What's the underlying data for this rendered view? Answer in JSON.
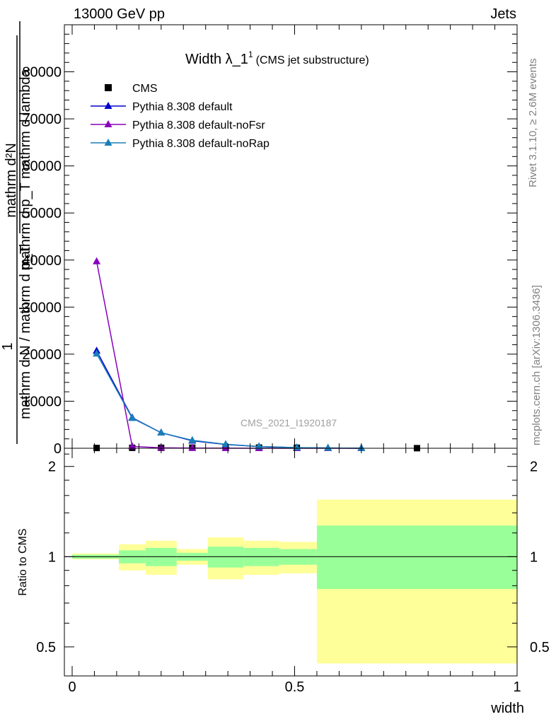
{
  "header": {
    "left": "13000 GeV pp",
    "right": "Jets"
  },
  "side_labels": {
    "top": "Rivet 3.1.10, ≥ 2.6M events",
    "bottom": "mcplots.cern.ch [arXiv:1306.3436]"
  },
  "watermark": "CMS_2021_I1920187",
  "colors": {
    "cms": "#000000",
    "default": "#0000cc",
    "noFsr": "#8800bb",
    "noRap": "#1a7fb8",
    "band_inner": "#99ff99",
    "band_outer": "#ffff99"
  },
  "chart_data": [
    {
      "type": "line",
      "title": "Width λ_1",
      "title_superscript": "1",
      "subtitle": "(CMS jet substructure)",
      "ylabel_line1": "mathrm d²N",
      "ylabel_line2": "mathrm d p_T mathrm d lambda",
      "ylabel_prefix": "1",
      "ylabel_denominator": "mathrm d N / mathrm d p_T",
      "xlim": [
        0,
        1
      ],
      "ylim": [
        0,
        90000
      ],
      "yticks": [
        0,
        10000,
        20000,
        30000,
        40000,
        50000,
        60000,
        70000,
        80000
      ],
      "ytick_labels": [
        "0",
        "10000",
        "20000",
        "30000",
        "40000",
        "50000",
        "60000",
        "70000",
        "80000"
      ],
      "legend_position": "top-left",
      "series": [
        {
          "name": "CMS",
          "marker": "square",
          "color_key": "cms",
          "x": [
            0.055,
            0.135,
            0.2,
            0.27,
            0.345,
            0.42,
            0.505,
            0.775
          ],
          "y": [
            60,
            90,
            100,
            130,
            130,
            140,
            110,
            20
          ]
        },
        {
          "name": "Pythia 8.308 default",
          "marker": "triangle",
          "color_key": "default",
          "x": [
            0.055,
            0.135,
            0.2,
            0.27,
            0.345,
            0.42,
            0.505,
            0.575,
            0.65
          ],
          "y": [
            20700,
            6500,
            3300,
            1600,
            800,
            350,
            130,
            50,
            15
          ]
        },
        {
          "name": "Pythia 8.308 default-noFsr",
          "marker": "triangle",
          "color_key": "noFsr",
          "x": [
            0.055,
            0.135,
            0.2,
            0.27,
            0.345,
            0.42,
            0.505,
            0.575,
            0.65
          ],
          "y": [
            39700,
            400,
            100,
            30,
            10,
            5,
            2,
            1,
            0
          ]
        },
        {
          "name": "Pythia 8.308 default-noRap",
          "marker": "triangle",
          "color_key": "noRap",
          "x": [
            0.055,
            0.135,
            0.2,
            0.27,
            0.345,
            0.42,
            0.505,
            0.575,
            0.65
          ],
          "y": [
            20100,
            6400,
            3300,
            1700,
            850,
            380,
            140,
            55,
            18
          ]
        }
      ]
    },
    {
      "type": "area",
      "ylabel": "Ratio to CMS",
      "xlabel": "width",
      "xlim": [
        0,
        1
      ],
      "xticks": [
        0,
        0.5,
        1
      ],
      "xtick_labels": [
        "0",
        "0.5",
        "1"
      ],
      "ylim": [
        0.4,
        2.3
      ],
      "scale": "log",
      "yticks": [
        0.5,
        1,
        2
      ],
      "ytick_labels": [
        "0.5",
        "1",
        "2"
      ],
      "reference_line": 1,
      "bins": [
        {
          "x0": 0.0,
          "x1": 0.105,
          "inner": [
            0.985,
            1.015
          ],
          "outer": [
            0.98,
            1.025
          ]
        },
        {
          "x0": 0.105,
          "x1": 0.165,
          "inner": [
            0.95,
            1.05
          ],
          "outer": [
            0.9,
            1.1
          ]
        },
        {
          "x0": 0.165,
          "x1": 0.235,
          "inner": [
            0.93,
            1.07
          ],
          "outer": [
            0.87,
            1.13
          ]
        },
        {
          "x0": 0.235,
          "x1": 0.305,
          "inner": [
            0.97,
            1.03
          ],
          "outer": [
            0.94,
            1.06
          ]
        },
        {
          "x0": 0.305,
          "x1": 0.385,
          "inner": [
            0.92,
            1.08
          ],
          "outer": [
            0.84,
            1.16
          ]
        },
        {
          "x0": 0.385,
          "x1": 0.465,
          "inner": [
            0.93,
            1.07
          ],
          "outer": [
            0.87,
            1.13
          ]
        },
        {
          "x0": 0.465,
          "x1": 0.55,
          "inner": [
            0.94,
            1.06
          ],
          "outer": [
            0.88,
            1.12
          ]
        },
        {
          "x0": 0.55,
          "x1": 1.0,
          "inner": [
            0.78,
            1.27
          ],
          "outer": [
            0.44,
            1.55
          ]
        }
      ]
    }
  ]
}
